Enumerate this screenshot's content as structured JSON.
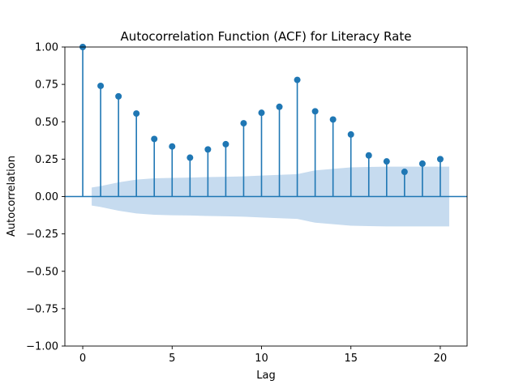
{
  "chart_data": {
    "type": "stem",
    "title": "Autocorrelation Function (ACF) for Literacy Rate",
    "xlabel": "Lag",
    "ylabel": "Autocorrelation",
    "xlim": [
      -1,
      21.5
    ],
    "ylim": [
      -1.0,
      1.0
    ],
    "x_ticks": [
      0,
      5,
      10,
      15,
      20
    ],
    "x_tick_labels": [
      "0",
      "5",
      "10",
      "15",
      "20"
    ],
    "y_ticks": [
      -1.0,
      -0.75,
      -0.5,
      -0.25,
      0.0,
      0.25,
      0.5,
      0.75,
      1.0
    ],
    "y_tick_labels": [
      "−1.00",
      "−0.75",
      "−0.50",
      "−0.25",
      "0.00",
      "0.25",
      "0.50",
      "0.75",
      "1.00"
    ],
    "lags": [
      0,
      1,
      2,
      3,
      4,
      5,
      6,
      7,
      8,
      9,
      10,
      11,
      12,
      13,
      14,
      15,
      16,
      17,
      18,
      19,
      20
    ],
    "values": [
      1.0,
      0.74,
      0.67,
      0.555,
      0.385,
      0.335,
      0.26,
      0.315,
      0.35,
      0.49,
      0.56,
      0.6,
      0.78,
      0.57,
      0.515,
      0.415,
      0.275,
      0.235,
      0.165,
      0.22,
      0.25
    ],
    "confidence_band": {
      "lags": [
        0.5,
        1,
        2,
        3,
        4,
        5,
        6,
        7,
        8,
        9,
        10,
        11,
        12,
        13,
        14,
        15,
        16,
        17,
        18,
        19,
        20,
        20.5
      ],
      "upper": [
        0.06,
        0.07,
        0.095,
        0.113,
        0.122,
        0.125,
        0.127,
        0.13,
        0.132,
        0.135,
        0.14,
        0.145,
        0.15,
        0.175,
        0.185,
        0.195,
        0.198,
        0.2,
        0.2,
        0.2,
        0.2,
        0.2
      ],
      "lower": [
        -0.06,
        -0.07,
        -0.095,
        -0.113,
        -0.122,
        -0.125,
        -0.127,
        -0.13,
        -0.132,
        -0.135,
        -0.14,
        -0.145,
        -0.15,
        -0.175,
        -0.185,
        -0.195,
        -0.198,
        -0.2,
        -0.2,
        -0.2,
        -0.2,
        -0.2
      ]
    },
    "colors": {
      "stem": "#1f77b4",
      "band": "#c6dbef",
      "baseline": "#1f77b4"
    }
  }
}
